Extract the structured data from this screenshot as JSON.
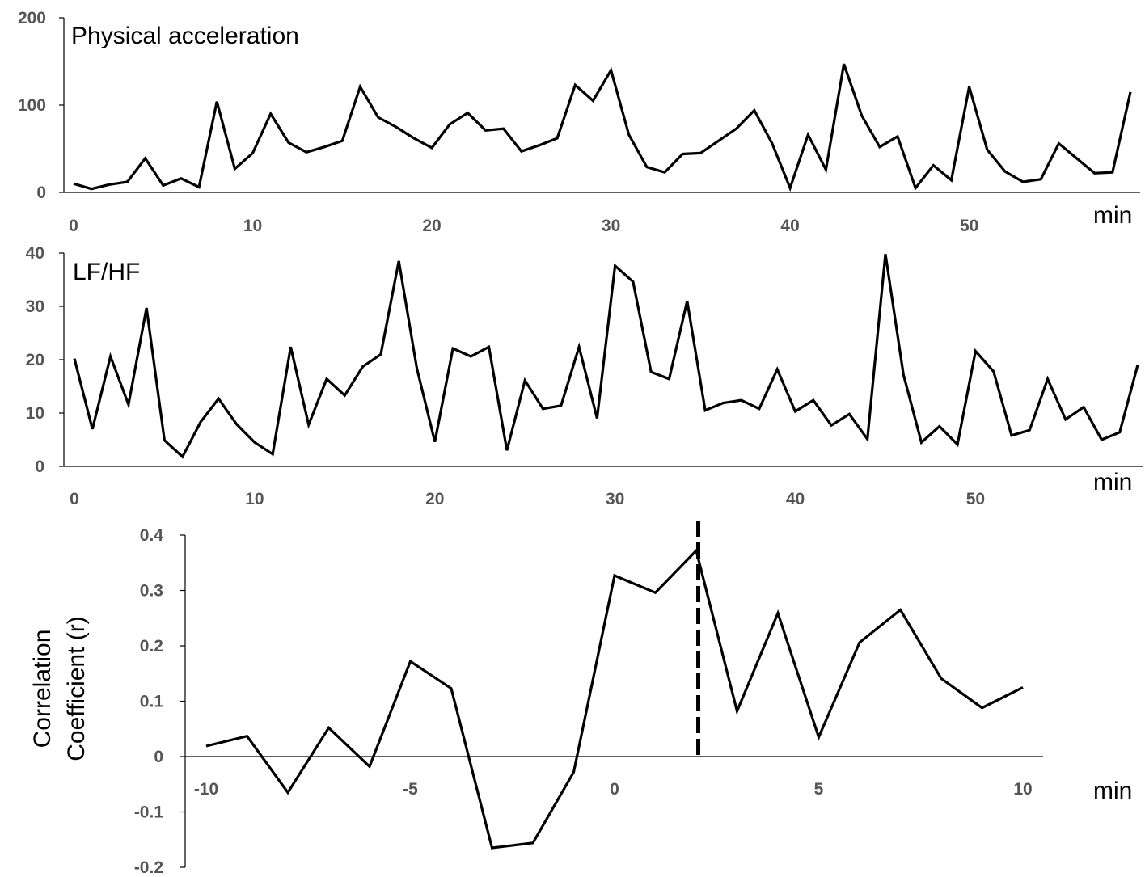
{
  "chart_data": [
    {
      "type": "line",
      "title": "Physical acceleration",
      "xlabel": "min",
      "ylabel": "",
      "xlim": [
        0,
        59
      ],
      "ylim": [
        0,
        200
      ],
      "xticks": [
        0,
        10,
        20,
        30,
        40,
        50
      ],
      "yticks": [
        0,
        100,
        200
      ],
      "grid": false,
      "series": [
        {
          "values": [
            10,
            4,
            9,
            12,
            39,
            8,
            16,
            6,
            104,
            27,
            45,
            90,
            57,
            46,
            52,
            59,
            121,
            86,
            75,
            62,
            51,
            78,
            91,
            71,
            73,
            47,
            54,
            62,
            123,
            105,
            140,
            66,
            29,
            23,
            44,
            45,
            59,
            73,
            94,
            56,
            5,
            66,
            26,
            147,
            88,
            52,
            64,
            5,
            31,
            14,
            121,
            49,
            24,
            12,
            15,
            56,
            39,
            22,
            23,
            115
          ]
        }
      ]
    },
    {
      "type": "line",
      "title": "LF/HF",
      "xlabel": "min",
      "ylabel": "",
      "xlim": [
        0,
        59
      ],
      "ylim": [
        0,
        40
      ],
      "xticks": [
        0,
        10,
        20,
        30,
        40,
        50
      ],
      "yticks": [
        0,
        10,
        20,
        30,
        40
      ],
      "grid": false,
      "series": [
        {
          "values": [
            20.2,
            7.0,
            20.6,
            11.6,
            29.7,
            4.9,
            1.8,
            8.3,
            12.7,
            7.9,
            4.5,
            2.3,
            22.4,
            7.8,
            16.4,
            13.3,
            18.7,
            21.0,
            38.5,
            18.4,
            4.6,
            22.1,
            20.6,
            22.4,
            3.0,
            16.1,
            10.8,
            11.4,
            22.4,
            9.0,
            37.6,
            34.6,
            17.7,
            16.4,
            31.0,
            10.5,
            11.9,
            12.4,
            10.8,
            18.2,
            10.3,
            12.4,
            7.7,
            9.8,
            5.1,
            39.8,
            17.2,
            4.5,
            7.5,
            4.1,
            21.6,
            17.8,
            5.8,
            6.8,
            16.4,
            8.8,
            11.1,
            5.0,
            6.4,
            19.0
          ]
        }
      ]
    },
    {
      "type": "line",
      "title": "",
      "xlabel": "min",
      "ylabel": "Correlation Coefficient (r)",
      "ylabel_lines": [
        "Correlation",
        "Coefficient (r)"
      ],
      "xlim": [
        -10,
        10
      ],
      "ylim": [
        -0.2,
        0.4
      ],
      "xticks": [
        "-10",
        "-5",
        "0",
        "5",
        "10"
      ],
      "yticks": [
        "-0.2",
        "-0.1",
        "0",
        "0.1",
        "0.2",
        "0.3",
        "0.4"
      ],
      "grid": false,
      "x": [
        -10,
        -9,
        -8,
        -7,
        -6,
        -5,
        -4,
        -3,
        -2,
        -1,
        0,
        1,
        2,
        3,
        4,
        5,
        6,
        7,
        8,
        9,
        10
      ],
      "series": [
        {
          "values": [
            0.019,
            0.037,
            -0.065,
            0.052,
            -0.018,
            0.172,
            0.123,
            -0.165,
            -0.156,
            -0.028,
            0.327,
            0.296,
            0.372,
            0.082,
            0.259,
            0.035,
            0.206,
            0.265,
            0.141,
            0.088,
            0.125
          ]
        }
      ],
      "marker_line": {
        "x": 2.05,
        "style": "dashed"
      }
    }
  ]
}
